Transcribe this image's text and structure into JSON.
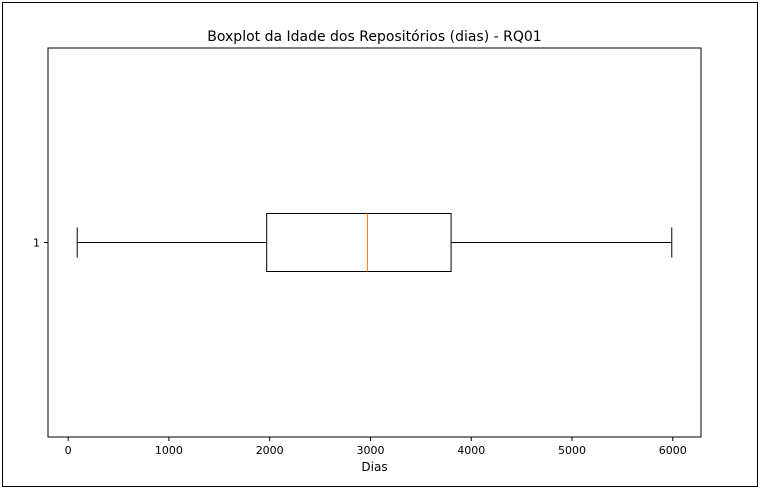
{
  "chart_data": {
    "type": "boxplot",
    "orientation": "horizontal",
    "title": "Boxplot da Idade dos Repositórios (dias) - RQ01",
    "xlabel": "Dias",
    "ylabel": "",
    "xlim": [
      -200,
      6280
    ],
    "x_ticks": [
      0,
      1000,
      2000,
      3000,
      4000,
      5000,
      6000
    ],
    "x_tick_labels": [
      "0",
      "1000",
      "2000",
      "3000",
      "4000",
      "5000",
      "6000"
    ],
    "categories": [
      "1"
    ],
    "boxes": [
      {
        "label": "1",
        "whisker_low": 90,
        "q1": 1970,
        "median": 2970,
        "q3": 3800,
        "whisker_high": 5990
      }
    ],
    "grid": false,
    "colors": {
      "box": "#000000",
      "median": "#ff7f0e",
      "axes": "#000000"
    }
  }
}
